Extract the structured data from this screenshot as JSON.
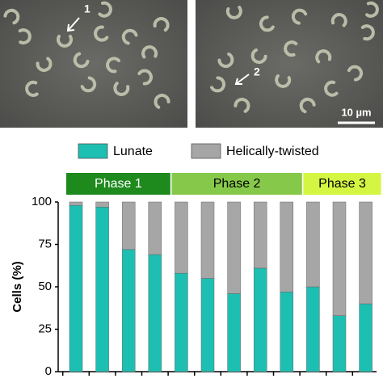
{
  "images": [
    {
      "arrow_label": "1"
    },
    {
      "arrow_label": "2",
      "scale_bar": "10 µm"
    }
  ],
  "chart_data": {
    "type": "bar",
    "stacked": true,
    "ylabel": "Cells (%)",
    "categories": [
      null,
      null,
      null,
      null,
      null,
      null,
      null,
      null,
      null,
      null,
      null,
      null
    ],
    "series": [
      {
        "name": "Lunate",
        "color": "#1dbfb2",
        "values": [
          98,
          97,
          72,
          69,
          58,
          55,
          46,
          61,
          47,
          50,
          33,
          40
        ]
      },
      {
        "name": "Helically-twisted",
        "color": "#a6a6a6",
        "values": [
          2,
          3,
          28,
          31,
          42,
          45,
          54,
          39,
          53,
          50,
          67,
          60
        ]
      }
    ],
    "phases": [
      {
        "label": "Phase 1",
        "color": "#1e8a1e",
        "text_color": "#ffffff",
        "categories": [
          0,
          3
        ]
      },
      {
        "label": "Phase 2",
        "color": "#86c94a",
        "text_color": "#000000",
        "categories": [
          4,
          8
        ]
      },
      {
        "label": "Phase 3",
        "color": "#d4f542",
        "text_color": "#000000",
        "categories": [
          9,
          11
        ]
      }
    ],
    "ylim": [
      0,
      100
    ],
    "yticks": [
      0,
      25,
      50,
      75,
      100
    ]
  }
}
